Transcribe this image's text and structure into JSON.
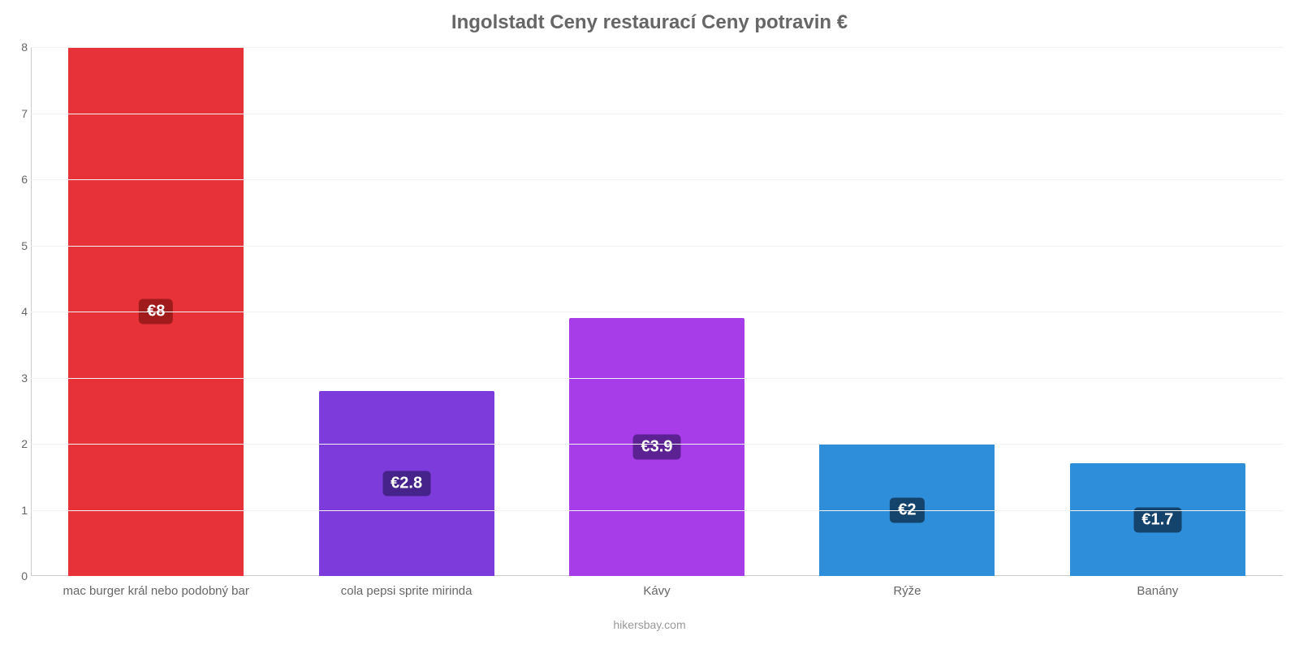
{
  "chart": {
    "type": "bar",
    "title": "Ingolstadt Ceny restaurací Ceny potravin €",
    "title_fontsize": 24,
    "title_color": "#666666",
    "background_color": "#ffffff",
    "grid_color": "#f2f2f2",
    "axis_color": "#cccccc",
    "tick_color": "#666666",
    "tick_fontsize": 14,
    "label_fontsize": 15,
    "ylim": [
      0,
      8
    ],
    "ytick_step": 1,
    "yticks": [
      0,
      1,
      2,
      3,
      4,
      5,
      6,
      7,
      8
    ],
    "bar_width": 0.7,
    "categories": [
      "mac burger král nebo podobný bar",
      "cola pepsi sprite mirinda",
      "Kávy",
      "Rýže",
      "Banány"
    ],
    "values": [
      8,
      2.8,
      3.9,
      2,
      1.7
    ],
    "value_labels": [
      "€8",
      "€2.8",
      "€3.9",
      "€2",
      "€1.7"
    ],
    "bar_colors": [
      "#e63238",
      "#7d3bdb",
      "#a63de8",
      "#2f8ed9",
      "#2f8ed9"
    ],
    "badge_colors": [
      "#a01b1b",
      "#45238a",
      "#5c2192",
      "#14436b",
      "#14436b"
    ],
    "badge_text_color": "#ffffff",
    "badge_fontsize": 20,
    "footer": "hikersbay.com",
    "footer_color": "#999999",
    "footer_fontsize": 14
  }
}
